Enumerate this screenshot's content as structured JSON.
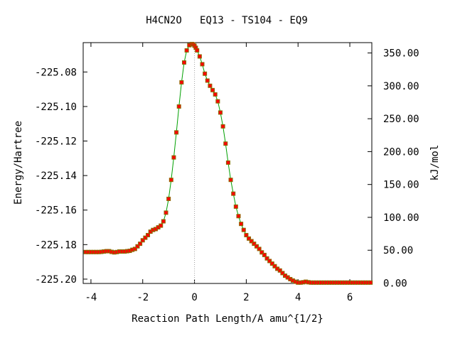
{
  "chart_data": {
    "type": "line",
    "title": "H4CN2O   EQ13 - TS104 - EQ9",
    "xlabel": "Reaction Path Length/A amu^{1/2}",
    "ylabel_left": "Energy/Hartree",
    "ylabel_right": "kJ/mol",
    "xlim": [
      -4.3,
      6.85
    ],
    "ylim_left": [
      -225.2025,
      -225.063
    ],
    "x_ticks": [
      -4,
      -2,
      0,
      2,
      4,
      6
    ],
    "x_tick_labels": [
      "-4",
      "-2",
      "0",
      "2",
      "4",
      "6"
    ],
    "y_left_ticks": [
      -225.2,
      -225.18,
      -225.16,
      -225.14,
      -225.12,
      -225.1,
      -225.08
    ],
    "y_left_tick_labels": [
      "-225.20",
      "-225.18",
      "-225.16",
      "-225.14",
      "-225.12",
      "-225.10",
      "-225.08"
    ],
    "y_right_ticks": [
      0,
      50,
      100,
      150,
      200,
      250,
      300,
      350
    ],
    "y_right_tick_labels": [
      "0.00",
      "50.00",
      "100.00",
      "150.00",
      "200.00",
      "250.00",
      "300.00",
      "350.00"
    ],
    "y_right_base_energy": -225.2023,
    "y_right_hartree_per_kjmol": 0.00038088,
    "vertical_marker_x": 0,
    "line_color": "#00a000",
    "point_color": "#ff0000",
    "series": [
      {
        "x": [
          -4.2,
          -4.1,
          -4.0,
          -3.9,
          -3.8,
          -3.7,
          -3.6,
          -3.5,
          -3.4,
          -3.3,
          -3.2,
          -3.1,
          -3.0,
          -2.9,
          -2.8,
          -2.7,
          -2.6,
          -2.5,
          -2.4,
          -2.3,
          -2.2,
          -2.1,
          -2.0,
          -1.9,
          -1.8,
          -1.7,
          -1.6,
          -1.5,
          -1.4,
          -1.3,
          -1.2,
          -1.1,
          -1.0,
          -0.9,
          -0.8,
          -0.7,
          -0.6,
          -0.5,
          -0.4,
          -0.3,
          -0.2,
          -0.1,
          -0.05,
          0.0,
          0.05,
          0.1,
          0.2,
          0.3,
          0.4,
          0.5,
          0.6,
          0.7,
          0.8,
          0.9,
          1.0,
          1.1,
          1.2,
          1.3,
          1.4,
          1.5,
          1.6,
          1.7,
          1.8,
          1.9,
          2.0,
          2.1,
          2.2,
          2.3,
          2.4,
          2.5,
          2.6,
          2.7,
          2.8,
          2.9,
          3.0,
          3.1,
          3.2,
          3.3,
          3.4,
          3.5,
          3.6,
          3.7,
          3.8,
          3.9,
          4.0,
          4.1,
          4.2,
          4.3,
          4.4,
          4.5,
          4.6,
          4.7,
          4.8,
          4.9,
          5.0,
          5.1,
          5.2,
          5.3,
          5.4,
          5.5,
          5.6,
          5.7,
          5.8,
          5.9,
          6.0,
          6.1,
          6.2,
          6.3,
          6.4,
          6.5,
          6.6,
          6.7,
          6.8
        ],
        "y": [
          -225.1843,
          -225.1843,
          -225.1843,
          -225.1843,
          -225.1843,
          -225.1843,
          -225.1842,
          -225.184,
          -225.1838,
          -225.1838,
          -225.1842,
          -225.1845,
          -225.1843,
          -225.184,
          -225.184,
          -225.184,
          -225.1838,
          -225.1836,
          -225.183,
          -225.1825,
          -225.181,
          -225.1795,
          -225.1775,
          -225.176,
          -225.1745,
          -225.1725,
          -225.1715,
          -225.171,
          -225.17,
          -225.169,
          -225.1665,
          -225.1615,
          -225.1535,
          -225.1425,
          -225.1295,
          -225.115,
          -225.1,
          -225.086,
          -225.0745,
          -225.0675,
          -225.0645,
          -225.0638,
          -225.064,
          -225.0648,
          -225.066,
          -225.0675,
          -225.071,
          -225.0755,
          -225.081,
          -225.085,
          -225.088,
          -225.0905,
          -225.093,
          -225.097,
          -225.1035,
          -225.1115,
          -225.1215,
          -225.1325,
          -225.1425,
          -225.1505,
          -225.158,
          -225.1635,
          -225.168,
          -225.1715,
          -225.1745,
          -225.1765,
          -225.178,
          -225.1795,
          -225.181,
          -225.1825,
          -225.1845,
          -225.186,
          -225.188,
          -225.1895,
          -225.191,
          -225.1925,
          -225.194,
          -225.195,
          -225.1965,
          -225.198,
          -225.199,
          -225.2,
          -225.2008,
          -225.2015,
          -225.202,
          -225.202,
          -225.2018,
          -225.2015,
          -225.2018,
          -225.202,
          -225.202,
          -225.202,
          -225.202,
          -225.202,
          -225.202,
          -225.202,
          -225.202,
          -225.202,
          -225.202,
          -225.202,
          -225.202,
          -225.202,
          -225.202,
          -225.202,
          -225.202,
          -225.202,
          -225.202,
          -225.202,
          -225.202,
          -225.202,
          -225.202,
          -225.202,
          -225.202
        ]
      }
    ]
  }
}
